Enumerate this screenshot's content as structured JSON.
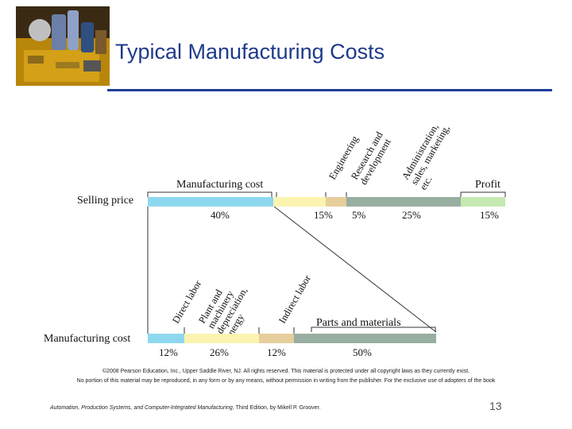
{
  "slide": {
    "title": "Typical Manufacturing Costs",
    "page_number": "13"
  },
  "top_bar": {
    "row_label": "Selling price",
    "group_labels": {
      "manufacturing_cost": "Manufacturing cost",
      "profit": "Profit"
    },
    "rotated_labels": {
      "engineering": "Engineering",
      "research": "Research and\ndevelopment",
      "administration": "Administration,\nsales, marketing,\netc."
    },
    "segments": [
      {
        "name": "Manufacturing cost",
        "percent": "40%",
        "color": "#8ed8ef"
      },
      {
        "name": "Engineering",
        "percent": "15%",
        "color": "#fbf3b0"
      },
      {
        "name": "Research and development",
        "percent": "5%",
        "color": "#e6cf9c"
      },
      {
        "name": "Administration, sales, marketing, etc.",
        "percent": "25%",
        "color": "#98aea1"
      },
      {
        "name": "Profit",
        "percent": "15%",
        "color": "#c5e9b1"
      }
    ]
  },
  "bottom_bar": {
    "row_label": "Manufacturing cost",
    "rotated_labels": {
      "direct_labor": "Direct labor",
      "plant": "Plant and\nmachinery\ndepreciation,\nenergy",
      "indirect_labor": "Indirect labor"
    },
    "parts_label": "Parts and materials",
    "segments": [
      {
        "name": "Direct labor",
        "percent": "12%",
        "color": "#8ed8ef"
      },
      {
        "name": "Plant and machinery depreciation, energy",
        "percent": "26%",
        "color": "#fbf3b0"
      },
      {
        "name": "Indirect labor",
        "percent": "12%",
        "color": "#e6cf9c"
      },
      {
        "name": "Parts and materials",
        "percent": "50%",
        "color": "#98aea1"
      }
    ]
  },
  "footer": {
    "copyright_line1": "©2008 Pearson Education, Inc., Upper Saddle River, NJ. All rights reserved. This material is protected under all copyright laws as they currently exist.",
    "copyright_line2": "No portion of this material may be reproduced, in any form or by any means, without permission in writing from the publisher. For the exclusive use of adopters of the book",
    "source_title": "Automation, Production Systems, and Computer-Integrated Manufacturing",
    "source_rest": ", Third Edition, by Mikell P. Groover."
  }
}
